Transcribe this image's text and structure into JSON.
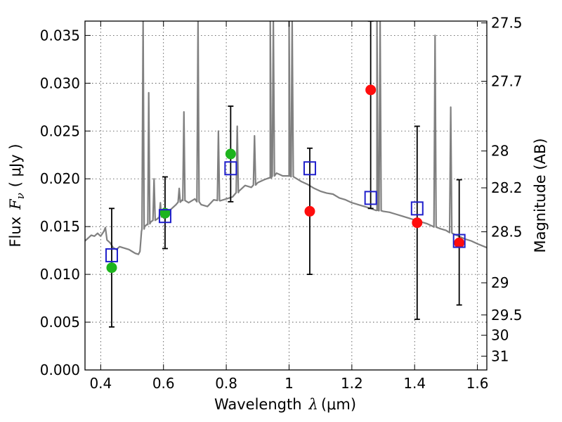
{
  "chart_data": {
    "type": "scatter",
    "xlabel_prefix": "Wavelength",
    "xlabel_symbol": "λ",
    "xlabel_unit": "(μm)",
    "ylabel_prefix": "Flux",
    "ylabel_symbol": "F",
    "ylabel_subscript": "ν",
    "ylabel_unit": "( μJy )",
    "y2label": "Magnitude (AB)",
    "xlim": [
      0.35,
      1.63
    ],
    "ylim": [
      0.0,
      0.0365
    ],
    "grid": true,
    "x_ticks": [
      {
        "value": 0.4,
        "label": "0.4"
      },
      {
        "value": 0.6,
        "label": "0.6"
      },
      {
        "value": 0.8,
        "label": "0.8"
      },
      {
        "value": 1.0,
        "label": "1"
      },
      {
        "value": 1.2,
        "label": "1.2"
      },
      {
        "value": 1.4,
        "label": "1.4"
      },
      {
        "value": 1.6,
        "label": "1.6"
      }
    ],
    "y_ticks": [
      {
        "value": 0.0,
        "label": "0.000"
      },
      {
        "value": 0.005,
        "label": "0.005"
      },
      {
        "value": 0.01,
        "label": "0.010"
      },
      {
        "value": 0.015,
        "label": "0.015"
      },
      {
        "value": 0.02,
        "label": "0.020"
      },
      {
        "value": 0.025,
        "label": "0.025"
      },
      {
        "value": 0.03,
        "label": "0.030"
      },
      {
        "value": 0.035,
        "label": "0.035"
      }
    ],
    "y2_ticks": [
      {
        "mag": 27.5,
        "label": "27.5"
      },
      {
        "mag": 27.7,
        "label": "27.7"
      },
      {
        "mag": 28.0,
        "label": "28"
      },
      {
        "mag": 28.2,
        "label": "28.2"
      },
      {
        "mag": 28.5,
        "label": "28.5"
      },
      {
        "mag": 29.0,
        "label": "29"
      },
      {
        "mag": 29.5,
        "label": "29.5"
      },
      {
        "mag": 30.0,
        "label": "30"
      },
      {
        "mag": 31.0,
        "label": "31"
      }
    ],
    "colors": {
      "spectrum": "#808080",
      "observed_green": "#1db41d",
      "observed_red": "#ff0d0d",
      "model_box": "#1f1fcc",
      "errorbar": "#000000"
    },
    "spectrum": [
      [
        0.35,
        0.0135
      ],
      [
        0.36,
        0.0138
      ],
      [
        0.37,
        0.0141
      ],
      [
        0.38,
        0.014
      ],
      [
        0.39,
        0.0143
      ],
      [
        0.4,
        0.014
      ],
      [
        0.41,
        0.0145
      ],
      [
        0.415,
        0.0149
      ],
      [
        0.42,
        0.0136
      ],
      [
        0.43,
        0.0133
      ],
      [
        0.44,
        0.0128
      ],
      [
        0.45,
        0.0126
      ],
      [
        0.46,
        0.0129
      ],
      [
        0.47,
        0.0128
      ],
      [
        0.48,
        0.0127
      ],
      [
        0.49,
        0.0126
      ],
      [
        0.5,
        0.0124
      ],
      [
        0.51,
        0.0122
      ],
      [
        0.52,
        0.0121
      ],
      [
        0.525,
        0.0124
      ],
      [
        0.53,
        0.0145
      ],
      [
        0.54,
        0.015
      ],
      [
        0.55,
        0.0152
      ],
      [
        0.56,
        0.0155
      ],
      [
        0.58,
        0.0158
      ],
      [
        0.6,
        0.0162
      ],
      [
        0.62,
        0.0167
      ],
      [
        0.64,
        0.0173
      ],
      [
        0.66,
        0.0178
      ],
      [
        0.68,
        0.0175
      ],
      [
        0.7,
        0.0179
      ],
      [
        0.72,
        0.0173
      ],
      [
        0.74,
        0.0171
      ],
      [
        0.76,
        0.0178
      ],
      [
        0.78,
        0.0177
      ],
      [
        0.8,
        0.0179
      ],
      [
        0.82,
        0.0181
      ],
      [
        0.84,
        0.0187
      ],
      [
        0.86,
        0.0193
      ],
      [
        0.88,
        0.0191
      ],
      [
        0.9,
        0.0196
      ],
      [
        0.92,
        0.0199
      ],
      [
        0.94,
        0.0201
      ],
      [
        0.96,
        0.0206
      ],
      [
        0.98,
        0.0203
      ],
      [
        1.0,
        0.0203
      ],
      [
        1.02,
        0.0201
      ],
      [
        1.04,
        0.0197
      ],
      [
        1.06,
        0.0194
      ],
      [
        1.08,
        0.019
      ],
      [
        1.1,
        0.0187
      ],
      [
        1.12,
        0.0185
      ],
      [
        1.14,
        0.0184
      ],
      [
        1.16,
        0.018
      ],
      [
        1.18,
        0.0178
      ],
      [
        1.2,
        0.0175
      ],
      [
        1.22,
        0.0173
      ],
      [
        1.24,
        0.0171
      ],
      [
        1.26,
        0.0169
      ],
      [
        1.28,
        0.0167
      ],
      [
        1.3,
        0.0166
      ],
      [
        1.32,
        0.0165
      ],
      [
        1.34,
        0.0163
      ],
      [
        1.36,
        0.0161
      ],
      [
        1.38,
        0.0159
      ],
      [
        1.4,
        0.0157
      ],
      [
        1.42,
        0.0155
      ],
      [
        1.44,
        0.0153
      ],
      [
        1.46,
        0.015
      ],
      [
        1.48,
        0.0148
      ],
      [
        1.5,
        0.0146
      ],
      [
        1.52,
        0.0143
      ],
      [
        1.54,
        0.014
      ],
      [
        1.56,
        0.0137
      ],
      [
        1.58,
        0.0135
      ],
      [
        1.6,
        0.0132
      ],
      [
        1.63,
        0.0128
      ]
    ],
    "emission_lines": [
      {
        "x": 0.535,
        "peak": 0.0365
      },
      {
        "x": 0.553,
        "peak": 0.029
      },
      {
        "x": 0.57,
        "peak": 0.02
      },
      {
        "x": 0.59,
        "peak": 0.0175
      },
      {
        "x": 0.65,
        "peak": 0.019
      },
      {
        "x": 0.665,
        "peak": 0.027
      },
      {
        "x": 0.71,
        "peak": 0.0365
      },
      {
        "x": 0.775,
        "peak": 0.025
      },
      {
        "x": 0.835,
        "peak": 0.0255
      },
      {
        "x": 0.89,
        "peak": 0.0245
      },
      {
        "x": 0.94,
        "peak": 0.0365
      },
      {
        "x": 0.95,
        "peak": 0.0365
      },
      {
        "x": 1.0,
        "peak": 0.0365
      },
      {
        "x": 1.01,
        "peak": 0.0365
      },
      {
        "x": 1.28,
        "peak": 0.0365
      },
      {
        "x": 1.29,
        "peak": 0.0365
      },
      {
        "x": 1.465,
        "peak": 0.035
      },
      {
        "x": 1.515,
        "peak": 0.0275
      }
    ],
    "observed": [
      {
        "x": 0.435,
        "y": 0.0107,
        "color": "green"
      },
      {
        "x": 0.605,
        "y": 0.0164,
        "color": "green"
      },
      {
        "x": 0.814,
        "y": 0.0226,
        "color": "green"
      },
      {
        "x": 1.066,
        "y": 0.0166,
        "color": "red"
      },
      {
        "x": 1.26,
        "y": 0.0293,
        "color": "red"
      },
      {
        "x": 1.408,
        "y": 0.0154,
        "color": "red"
      },
      {
        "x": 1.542,
        "y": 0.0133,
        "color": "red"
      }
    ],
    "model": [
      {
        "x": 0.435,
        "y": 0.012,
        "err_low": 0.0045,
        "err_high": 0.0169
      },
      {
        "x": 0.605,
        "y": 0.0161,
        "err_low": 0.0127,
        "err_high": 0.0202
      },
      {
        "x": 0.814,
        "y": 0.0211,
        "err_low": 0.0176,
        "err_high": 0.0276
      },
      {
        "x": 1.066,
        "y": 0.0211,
        "err_low": 0.01,
        "err_high": 0.0232
      },
      {
        "x": 1.26,
        "y": 0.018,
        "err_low": 0.0169,
        "err_high": 0.0365
      },
      {
        "x": 1.408,
        "y": 0.0169,
        "err_low": 0.0053,
        "err_high": 0.0255
      },
      {
        "x": 1.542,
        "y": 0.0135,
        "err_low": 0.0068,
        "err_high": 0.0199
      }
    ]
  }
}
